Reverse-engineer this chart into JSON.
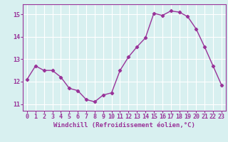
{
  "x": [
    0,
    1,
    2,
    3,
    4,
    5,
    6,
    7,
    8,
    9,
    10,
    11,
    12,
    13,
    14,
    15,
    16,
    17,
    18,
    19,
    20,
    21,
    22,
    23
  ],
  "y": [
    12.1,
    12.7,
    12.5,
    12.5,
    12.2,
    11.7,
    11.6,
    11.2,
    11.1,
    11.4,
    11.5,
    12.5,
    13.1,
    13.55,
    13.95,
    15.05,
    14.95,
    15.15,
    15.1,
    14.9,
    14.35,
    13.55,
    12.7,
    11.85
  ],
  "line_color": "#993399",
  "marker": "D",
  "marker_size": 2.2,
  "bg_color": "#d8f0f0",
  "grid_color": "#ffffff",
  "tick_color": "#993399",
  "label_color": "#993399",
  "xlabel": "Windchill (Refroidissement éolien,°C)",
  "yticks": [
    11,
    12,
    13,
    14,
    15
  ],
  "xticks": [
    0,
    1,
    2,
    3,
    4,
    5,
    6,
    7,
    8,
    9,
    10,
    11,
    12,
    13,
    14,
    15,
    16,
    17,
    18,
    19,
    20,
    21,
    22,
    23
  ],
  "xlim": [
    -0.5,
    23.5
  ],
  "ylim": [
    10.7,
    15.45
  ],
  "xlabel_fontsize": 6.5,
  "tick_fontsize": 6.0,
  "linewidth": 1.0
}
